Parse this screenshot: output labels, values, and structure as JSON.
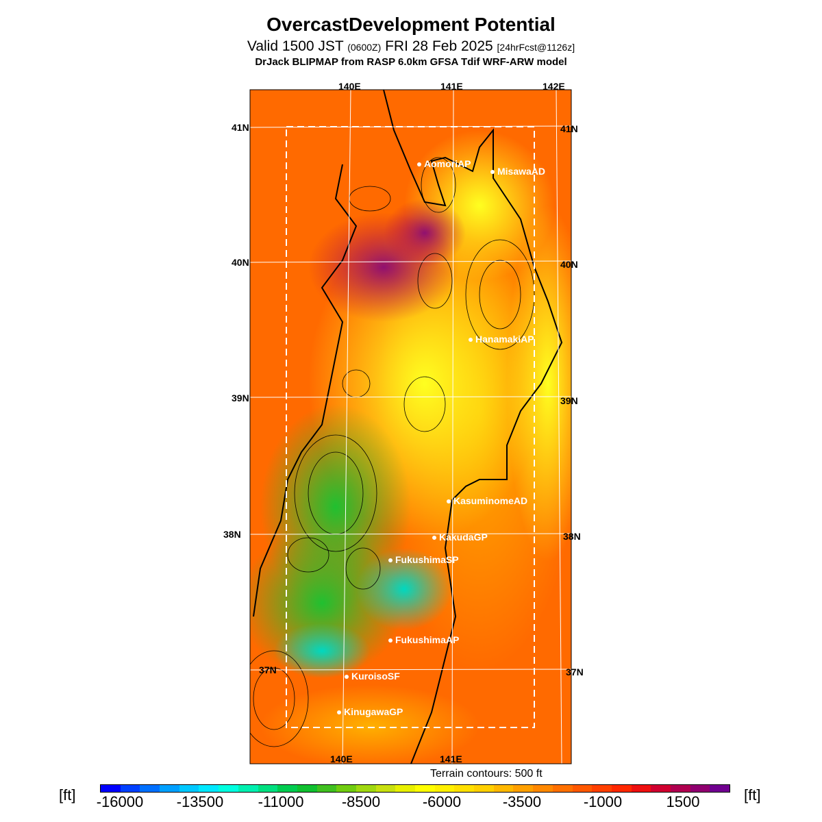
{
  "title": "OvercastDevelopment Potential",
  "subtitle": {
    "part1": "Valid 1500 JST",
    "part2": "(0600Z)",
    "part3": "FRI 28 Feb 2025",
    "part4": "[24hrFcst@1126z]"
  },
  "model_line": "DrJack BLIPMAP from RASP 6.0km GFSA Tdif WRF-ARW model",
  "lon_labels": [
    "140E",
    "141E",
    "142E"
  ],
  "lat_labels": [
    "41N",
    "40N",
    "39N",
    "38N",
    "37N"
  ],
  "stations": [
    "AomoriAP",
    "MisawaAD",
    "HanamakiAP",
    "KasuminomeAD",
    "KakudaGP",
    "FukushimaSP",
    "FukushimaAP",
    "KuroisoSF",
    "KinugawaGP"
  ],
  "terrain_note": "Terrain contours: 500 ft",
  "colorbar": {
    "unit": "[ft]",
    "tick_labels": [
      "-16000",
      "-13500",
      "-11000",
      "-8500",
      "-6000",
      "-3500",
      "-1000",
      "1500"
    ],
    "colors": [
      "#0000ff",
      "#0040ff",
      "#0070ff",
      "#00a0ff",
      "#00c8ff",
      "#00e8ff",
      "#00ffe0",
      "#00f0b0",
      "#00e080",
      "#00cc50",
      "#10c030",
      "#40c020",
      "#70cc10",
      "#a0d810",
      "#c8e010",
      "#e8f000",
      "#ffff00",
      "#fff000",
      "#ffe000",
      "#ffd000",
      "#ffb800",
      "#ffa000",
      "#ff8800",
      "#ff7000",
      "#ff5800",
      "#ff4000",
      "#ff2800",
      "#ee1010",
      "#d00030",
      "#b00050",
      "#900070",
      "#700090"
    ]
  }
}
